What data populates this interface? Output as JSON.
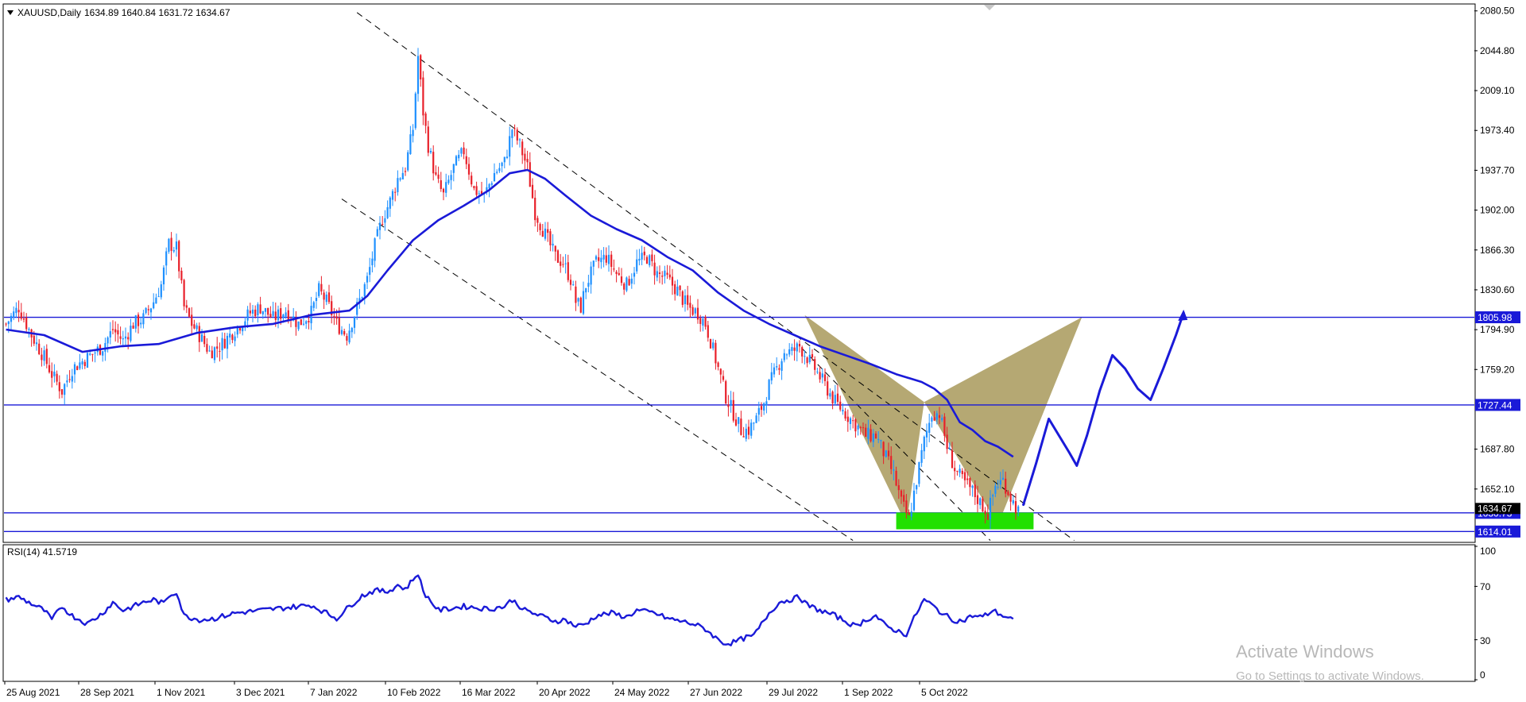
{
  "header": {
    "symbol": "XAUUSD,Daily",
    "ohlc": "1634.89 1640.84 1631.72 1634.67"
  },
  "rsi": {
    "label": "RSI(14) 41.5719",
    "ticks": [
      "100",
      "70",
      "30",
      "0"
    ]
  },
  "watermark": {
    "line1": "Activate Windows",
    "line2": "Go to Settings to activate Windows."
  },
  "colors": {
    "bull": "#1e90ff",
    "bear": "#e8202a",
    "ma": "#1a1ad8",
    "level": "#1a1ad8",
    "pattern": "#a8995a",
    "zone": "#22e000"
  },
  "chart_data": [
    {
      "type": "candlestick",
      "symbol": "XAUUSD",
      "timeframe": "Daily",
      "ylim": [
        1605,
        2086
      ],
      "y_ticks": [
        "2080.50",
        "2044.80",
        "2009.10",
        "1973.40",
        "1937.70",
        "1902.00",
        "1866.30",
        "1830.60",
        "1794.90",
        "1759.20",
        "1687.80",
        "1652.10"
      ],
      "x_labels": [
        "25 Aug 2021",
        "28 Sep 2021",
        "1 Nov 2021",
        "3 Dec 2021",
        "7 Jan 2022",
        "10 Feb 2022",
        "16 Mar 2022",
        "20 Apr 2022",
        "24 May 2022",
        "27 Jun 2022",
        "29 Jul 2022",
        "1 Sep 2022",
        "5 Oct 2022"
      ],
      "levels": [
        {
          "value": 1805.98,
          "label": "1805.98"
        },
        {
          "value": 1727.44,
          "label": "1727.44"
        },
        {
          "value": 1630.73,
          "label": "1630.73"
        },
        {
          "value": 1614.01,
          "label": "1614.01"
        }
      ],
      "current_price": "1634.67",
      "close_path": [
        [
          0,
          1800
        ],
        [
          5,
          1815
        ],
        [
          10,
          1790
        ],
        [
          15,
          1770
        ],
        [
          18,
          1755
        ],
        [
          22,
          1740
        ],
        [
          26,
          1760
        ],
        [
          32,
          1770
        ],
        [
          38,
          1780
        ],
        [
          42,
          1795
        ],
        [
          46,
          1785
        ],
        [
          50,
          1800
        ],
        [
          54,
          1805
        ],
        [
          58,
          1820
        ],
        [
          61,
          1835
        ],
        [
          64,
          1872
        ],
        [
          67,
          1868
        ],
        [
          70,
          1815
        ],
        [
          73,
          1800
        ],
        [
          76,
          1790
        ],
        [
          80,
          1775
        ],
        [
          84,
          1780
        ],
        [
          88,
          1790
        ],
        [
          92,
          1800
        ],
        [
          96,
          1810
        ],
        [
          100,
          1815
        ],
        [
          105,
          1805
        ],
        [
          110,
          1812
        ],
        [
          115,
          1800
        ],
        [
          120,
          1810
        ],
        [
          123,
          1830
        ],
        [
          126,
          1820
        ],
        [
          130,
          1800
        ],
        [
          134,
          1790
        ],
        [
          138,
          1815
        ],
        [
          142,
          1840
        ],
        [
          145,
          1870
        ],
        [
          148,
          1895
        ],
        [
          151,
          1910
        ],
        [
          154,
          1930
        ],
        [
          157,
          1940
        ],
        [
          160,
          1975
        ],
        [
          162,
          2040
        ],
        [
          164,
          1990
        ],
        [
          166,
          1960
        ],
        [
          169,
          1930
        ],
        [
          172,
          1915
        ],
        [
          176,
          1940
        ],
        [
          180,
          1955
        ],
        [
          184,
          1920
        ],
        [
          188,
          1915
        ],
        [
          192,
          1935
        ],
        [
          196,
          1945
        ],
        [
          199,
          1975
        ],
        [
          202,
          1960
        ],
        [
          205,
          1940
        ],
        [
          208,
          1900
        ],
        [
          212,
          1880
        ],
        [
          216,
          1860
        ],
        [
          219,
          1855
        ],
        [
          222,
          1840
        ],
        [
          224,
          1820
        ],
        [
          226,
          1815
        ],
        [
          228,
          1835
        ],
        [
          232,
          1855
        ],
        [
          236,
          1860
        ],
        [
          240,
          1845
        ],
        [
          244,
          1835
        ],
        [
          248,
          1855
        ],
        [
          252,
          1860
        ],
        [
          256,
          1845
        ],
        [
          260,
          1840
        ],
        [
          264,
          1830
        ],
        [
          268,
          1815
        ],
        [
          272,
          1810
        ],
        [
          275,
          1800
        ],
        [
          277,
          1785
        ],
        [
          280,
          1760
        ],
        [
          283,
          1735
        ],
        [
          286,
          1720
        ],
        [
          289,
          1705
        ],
        [
          292,
          1705
        ],
        [
          295,
          1715
        ],
        [
          298,
          1730
        ],
        [
          300,
          1745
        ],
        [
          303,
          1760
        ],
        [
          306,
          1775
        ],
        [
          309,
          1775
        ],
        [
          312,
          1780
        ],
        [
          315,
          1770
        ],
        [
          318,
          1760
        ],
        [
          322,
          1745
        ],
        [
          326,
          1730
        ],
        [
          330,
          1720
        ],
        [
          334,
          1710
        ],
        [
          338,
          1700
        ],
        [
          342,
          1700
        ],
        [
          345,
          1685
        ],
        [
          349,
          1665
        ],
        [
          352,
          1640
        ],
        [
          355,
          1625
        ],
        [
          358,
          1660
        ],
        [
          361,
          1695
        ],
        [
          364,
          1720
        ],
        [
          367,
          1720
        ],
        [
          370,
          1690
        ],
        [
          373,
          1670
        ],
        [
          376,
          1660
        ],
        [
          380,
          1650
        ],
        [
          383,
          1640
        ],
        [
          386,
          1630
        ],
        [
          389,
          1655
        ],
        [
          392,
          1660
        ],
        [
          394,
          1650
        ],
        [
          396,
          1640
        ],
        [
          398,
          1632
        ]
      ],
      "moving_average": [
        [
          0,
          1795
        ],
        [
          15,
          1790
        ],
        [
          30,
          1775
        ],
        [
          45,
          1780
        ],
        [
          60,
          1782
        ],
        [
          75,
          1792
        ],
        [
          90,
          1797
        ],
        [
          105,
          1800
        ],
        [
          120,
          1808
        ],
        [
          135,
          1812
        ],
        [
          142,
          1825
        ],
        [
          150,
          1848
        ],
        [
          160,
          1875
        ],
        [
          170,
          1893
        ],
        [
          180,
          1906
        ],
        [
          190,
          1920
        ],
        [
          198,
          1935
        ],
        [
          205,
          1938
        ],
        [
          212,
          1930
        ],
        [
          220,
          1915
        ],
        [
          230,
          1897
        ],
        [
          240,
          1885
        ],
        [
          250,
          1875
        ],
        [
          260,
          1860
        ],
        [
          270,
          1848
        ],
        [
          280,
          1828
        ],
        [
          290,
          1812
        ],
        [
          300,
          1800
        ],
        [
          310,
          1790
        ],
        [
          320,
          1780
        ],
        [
          330,
          1772
        ],
        [
          340,
          1764
        ],
        [
          350,
          1755
        ],
        [
          360,
          1748
        ],
        [
          365,
          1742
        ],
        [
          370,
          1732
        ],
        [
          375,
          1712
        ],
        [
          380,
          1705
        ],
        [
          385,
          1695
        ],
        [
          390,
          1690
        ],
        [
          396,
          1681
        ]
      ],
      "projection": [
        [
          400,
          1638
        ],
        [
          405,
          1675
        ],
        [
          410,
          1715
        ],
        [
          414,
          1700
        ],
        [
          418,
          1685
        ],
        [
          421,
          1673
        ],
        [
          425,
          1700
        ],
        [
          430,
          1740
        ],
        [
          435,
          1772
        ],
        [
          440,
          1760
        ],
        [
          445,
          1742
        ],
        [
          450,
          1732
        ],
        [
          455,
          1760
        ],
        [
          460,
          1790
        ],
        [
          463,
          1810
        ]
      ]
    },
    {
      "type": "line",
      "name": "RSI(14) 41.5719",
      "ylim": [
        0,
        100
      ],
      "y_ticks": [
        100,
        70,
        30,
        0
      ],
      "values": [
        [
          0,
          60
        ],
        [
          5,
          62
        ],
        [
          10,
          57
        ],
        [
          15,
          52
        ],
        [
          18,
          45
        ],
        [
          22,
          55
        ],
        [
          26,
          48
        ],
        [
          32,
          42
        ],
        [
          38,
          50
        ],
        [
          42,
          58
        ],
        [
          46,
          52
        ],
        [
          50,
          55
        ],
        [
          54,
          58
        ],
        [
          58,
          60
        ],
        [
          62,
          57
        ],
        [
          64,
          63
        ],
        [
          67,
          66
        ],
        [
          70,
          48
        ],
        [
          76,
          45
        ],
        [
          82,
          46
        ],
        [
          90,
          50
        ],
        [
          100,
          52
        ],
        [
          110,
          54
        ],
        [
          120,
          56
        ],
        [
          126,
          50
        ],
        [
          130,
          46
        ],
        [
          135,
          55
        ],
        [
          140,
          63
        ],
        [
          145,
          67
        ],
        [
          150,
          66
        ],
        [
          154,
          71
        ],
        [
          157,
          68
        ],
        [
          160,
          75
        ],
        [
          162,
          80
        ],
        [
          164,
          66
        ],
        [
          170,
          52
        ],
        [
          180,
          55
        ],
        [
          190,
          53
        ],
        [
          196,
          55
        ],
        [
          199,
          60
        ],
        [
          204,
          52
        ],
        [
          210,
          48
        ],
        [
          216,
          44
        ],
        [
          220,
          45
        ],
        [
          224,
          40
        ],
        [
          228,
          42
        ],
        [
          232,
          48
        ],
        [
          238,
          50
        ],
        [
          244,
          47
        ],
        [
          248,
          52
        ],
        [
          255,
          50
        ],
        [
          260,
          46
        ],
        [
          265,
          44
        ],
        [
          270,
          42
        ],
        [
          275,
          38
        ],
        [
          280,
          30
        ],
        [
          283,
          27
        ],
        [
          286,
          28
        ],
        [
          290,
          31
        ],
        [
          294,
          33
        ],
        [
          300,
          50
        ],
        [
          304,
          58
        ],
        [
          308,
          60
        ],
        [
          312,
          62
        ],
        [
          315,
          56
        ],
        [
          320,
          52
        ],
        [
          326,
          48
        ],
        [
          330,
          44
        ],
        [
          334,
          40
        ],
        [
          338,
          45
        ],
        [
          342,
          48
        ],
        [
          346,
          40
        ],
        [
          350,
          37
        ],
        [
          354,
          34
        ],
        [
          358,
          50
        ],
        [
          361,
          60
        ],
        [
          364,
          56
        ],
        [
          368,
          50
        ],
        [
          372,
          45
        ],
        [
          376,
          44
        ],
        [
          380,
          48
        ],
        [
          384,
          47
        ],
        [
          388,
          52
        ],
        [
          392,
          48
        ],
        [
          396,
          45
        ]
      ]
    }
  ]
}
